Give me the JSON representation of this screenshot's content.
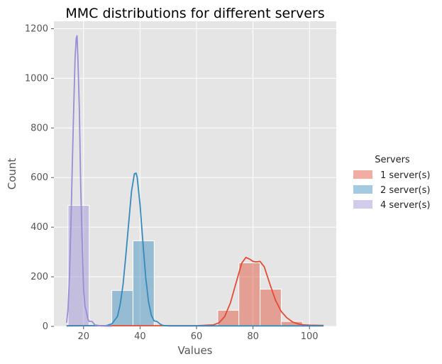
{
  "chart_data": {
    "type": "histogram",
    "title": "MMC distributions for different servers",
    "xlabel": "Values",
    "ylabel": "Count",
    "xlim": [
      9.5,
      109.5
    ],
    "ylim": [
      0,
      1230
    ],
    "xticks": [
      20,
      40,
      60,
      80,
      100
    ],
    "yticks": [
      0,
      200,
      400,
      600,
      800,
      1000,
      1200
    ],
    "grid": true,
    "legend_title": "Servers",
    "legend_position": "right",
    "series": [
      {
        "name": "1 server(s)",
        "color": "#e24a33",
        "bins": [
          {
            "x0": 67.5,
            "x1": 75,
            "count": 65
          },
          {
            "x0": 75,
            "x1": 82.5,
            "count": 256
          },
          {
            "x0": 82.5,
            "x1": 90,
            "count": 150
          },
          {
            "x0": 90,
            "x1": 97.5,
            "count": 20
          }
        ],
        "kde": [
          [
            14,
            3
          ],
          [
            60,
            3
          ],
          [
            66,
            6
          ],
          [
            68,
            15
          ],
          [
            70,
            40
          ],
          [
            72,
            95
          ],
          [
            74,
            175
          ],
          [
            76,
            255
          ],
          [
            77.5,
            278
          ],
          [
            79,
            270
          ],
          [
            80,
            262
          ],
          [
            81,
            260
          ],
          [
            82.5,
            262
          ],
          [
            84,
            240
          ],
          [
            86,
            170
          ],
          [
            88,
            105
          ],
          [
            90,
            60
          ],
          [
            92,
            35
          ],
          [
            94,
            18
          ],
          [
            96,
            10
          ],
          [
            98,
            6
          ],
          [
            100,
            5
          ],
          [
            105,
            4
          ]
        ]
      },
      {
        "name": "2 server(s)",
        "color": "#348abd",
        "bins": [
          {
            "x0": 30,
            "x1": 37.5,
            "count": 145
          },
          {
            "x0": 37.5,
            "x1": 45,
            "count": 345
          }
        ],
        "kde": [
          [
            14,
            2
          ],
          [
            28,
            3
          ],
          [
            30,
            10
          ],
          [
            32,
            40
          ],
          [
            33,
            90
          ],
          [
            34,
            170
          ],
          [
            35,
            290
          ],
          [
            36,
            420
          ],
          [
            37,
            545
          ],
          [
            38,
            615
          ],
          [
            38.6,
            618
          ],
          [
            39,
            600
          ],
          [
            40,
            490
          ],
          [
            41,
            340
          ],
          [
            42,
            200
          ],
          [
            43,
            100
          ],
          [
            44,
            45
          ],
          [
            45,
            22
          ],
          [
            46,
            20
          ],
          [
            47,
            10
          ],
          [
            48,
            4
          ],
          [
            50,
            2
          ],
          [
            105,
            2
          ]
        ]
      },
      {
        "name": "4 server(s)",
        "color": "#988ed5",
        "bins": [
          {
            "x0": 14.5,
            "x1": 22,
            "count": 488
          }
        ],
        "kde": [
          [
            14,
            15
          ],
          [
            14.5,
            70
          ],
          [
            15,
            200
          ],
          [
            15.5,
            400
          ],
          [
            16,
            650
          ],
          [
            16.5,
            880
          ],
          [
            17,
            1080
          ],
          [
            17.4,
            1160
          ],
          [
            17.7,
            1172
          ],
          [
            18,
            1080
          ],
          [
            18.5,
            880
          ],
          [
            19,
            560
          ],
          [
            19.5,
            340
          ],
          [
            20,
            150
          ],
          [
            20.5,
            80
          ],
          [
            21,
            60
          ],
          [
            21.5,
            30
          ],
          [
            22,
            20
          ],
          [
            23,
            20
          ],
          [
            24,
            6
          ],
          [
            26,
            2
          ],
          [
            30,
            1
          ]
        ]
      }
    ]
  }
}
